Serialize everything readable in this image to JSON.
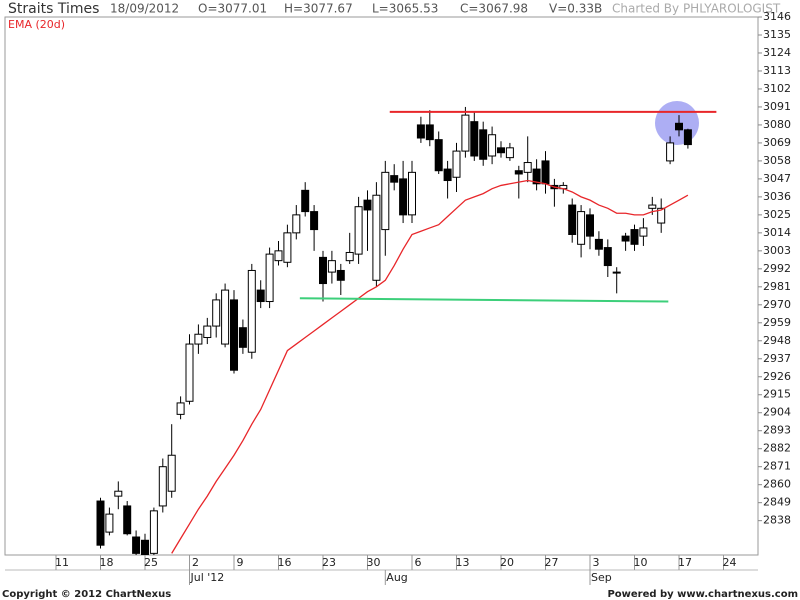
{
  "chart_data": {
    "type": "candlestick",
    "title": "Straits Times",
    "date": "18/09/2012",
    "ohlcv": [
      "O=3077.01",
      "H=3077.67",
      "L=3065.53",
      "C=3067.98",
      "V=0.33B"
    ],
    "credit": "Charted By PHLYAROLOGIST",
    "categories": [
      "11",
      null,
      null,
      null,
      null,
      "18",
      null,
      null,
      null,
      null,
      "25",
      null,
      null,
      null,
      null,
      "2",
      null,
      null,
      null,
      null,
      "9",
      null,
      null,
      null,
      null,
      "16",
      null,
      null,
      null,
      null,
      "23",
      null,
      null,
      null,
      null,
      "30",
      null,
      null,
      null,
      null,
      "6",
      null,
      null,
      null,
      null,
      "13",
      null,
      null,
      null,
      null,
      "20",
      null,
      null,
      null,
      null,
      "27",
      null,
      null,
      null,
      null,
      "3",
      null,
      null,
      null,
      null,
      "10",
      null,
      null,
      null,
      null,
      "17",
      null,
      null,
      null,
      null,
      "24",
      null,
      null
    ],
    "month_ticks": [
      {
        "value": 15,
        "label": "Jul '12"
      },
      {
        "value": 37,
        "label": "Aug"
      },
      {
        "value": 60,
        "label": "Sep"
      }
    ],
    "open": [
      null,
      null,
      null,
      null,
      null,
      2850,
      2831,
      2853,
      2847,
      2828,
      2826,
      2818,
      2847,
      2856,
      2903,
      2911,
      2946,
      2950,
      2957,
      2946,
      2973,
      2956,
      2941,
      2979,
      2972,
      2997,
      2996,
      3014,
      3040,
      3027,
      2999,
      2990,
      2991,
      2997,
      3001,
      3034,
      2985,
      3016,
      3049,
      3047,
      3025,
      3080,
      3080,
      3071,
      3053,
      3048,
      3064,
      3082,
      3077,
      3061,
      3066,
      3060,
      3052,
      3051,
      3053,
      3058,
      3043,
      3041,
      3031,
      3007,
      3025,
      3010,
      3005,
      2990,
      3012,
      3016,
      3012,
      3029,
      3020,
      3058,
      3081,
      3077.01,
      null,
      null,
      null,
      null,
      null,
      null
    ],
    "high": [
      null,
      null,
      null,
      null,
      null,
      2852,
      2846,
      2862,
      2850,
      2832,
      2830,
      2846,
      2876,
      2897,
      2914,
      2952,
      2958,
      2962,
      2977,
      2983,
      2979,
      2961,
      2995,
      2985,
      3005,
      3009,
      3019,
      3031,
      3045,
      3031,
      3003,
      3003,
      2995,
      3014,
      3036,
      3040,
      3045,
      3058,
      3056,
      3058,
      3058,
      3085,
      3089,
      3076,
      3058,
      3069,
      3091,
      3088,
      3082,
      3079,
      3070,
      3069,
      3055,
      3073,
      3059,
      3064,
      3047,
      3045,
      3035,
      3031,
      3029,
      3015,
      3010,
      2993,
      3014,
      3019,
      3023,
      3036,
      3035,
      3073,
      3086,
      3077.67,
      null,
      null,
      null,
      null,
      null,
      null
    ],
    "low": [
      null,
      null,
      null,
      null,
      null,
      2821,
      2829,
      2845,
      2829,
      2814,
      2810,
      2812,
      2843,
      2852,
      2900,
      2909,
      2940,
      2946,
      2950,
      2944,
      2928,
      2940,
      2937,
      2968,
      2968,
      2994,
      2993,
      3010,
      3024,
      3003,
      2972,
      2983,
      2976,
      2995,
      2995,
      3003,
      2981,
      3000,
      3040,
      3020,
      3020,
      3069,
      3067,
      3050,
      3035,
      3039,
      3060,
      3058,
      3055,
      3056,
      3060,
      3058,
      3035,
      3045,
      3040,
      3038,
      3030,
      3038,
      3008,
      2999,
      3004,
      3000,
      2987,
      2977,
      3003,
      3003,
      3006,
      3025,
      3014,
      3056,
      3073,
      3065.53,
      null,
      null,
      null,
      null,
      null,
      null
    ],
    "close": [
      null,
      null,
      null,
      null,
      null,
      2823,
      2842,
      2856,
      2830,
      2818,
      2815,
      2844,
      2871,
      2878,
      2910,
      2946,
      2952,
      2957,
      2973,
      2979,
      2930,
      2944,
      2991,
      2972,
      3001,
      3003,
      3014,
      3025,
      3027,
      3016,
      2983,
      2997,
      2985,
      3002,
      3030,
      3028,
      3037,
      3051,
      3045,
      3025,
      3051,
      3072,
      3071,
      3052,
      3046,
      3064,
      3086,
      3061,
      3059,
      3074,
      3063,
      3066,
      3050,
      3057,
      3044,
      3044,
      3041,
      3043,
      3013,
      3027,
      3012,
      3004,
      2994,
      2990,
      3009,
      3007,
      3017,
      3031,
      3029,
      3069,
      3077,
      3067.98,
      null,
      null,
      null,
      null,
      null,
      null
    ],
    "up_color": "#ffffff",
    "down_color": "#000000",
    "ema": {
      "name": "EMA (20d)",
      "color": "#e8262a",
      "values": [
        null,
        null,
        null,
        null,
        null,
        null,
        null,
        null,
        null,
        null,
        null,
        null,
        null,
        2818,
        2827,
        2836,
        2845,
        2853,
        2862,
        2870,
        2878,
        2887,
        2897,
        2906,
        2918,
        2930,
        2942,
        2946,
        2950,
        2954,
        2958,
        2962,
        2966,
        2970,
        2974,
        2978,
        2981,
        2985,
        2994,
        3004,
        3013,
        3015,
        3017,
        3019,
        3024,
        3029,
        3034,
        3036,
        3038,
        3041,
        3043,
        3044,
        3045,
        3046,
        3045,
        3044,
        3042,
        3041,
        3039,
        3036,
        3034,
        3031,
        3029,
        3026,
        3026,
        3025,
        3025,
        3027,
        3028,
        3031,
        3034,
        3037,
        null,
        null,
        null,
        null,
        null,
        null
      ]
    },
    "trendlines": [
      {
        "color": "#e8262a",
        "x": [
          37.5,
          74.2
        ],
        "values": [
          3088,
          3088
        ]
      },
      {
        "color": "#3ccf7a",
        "x": [
          27.4,
          68.8
        ],
        "values": [
          2974,
          2972
        ]
      }
    ],
    "ylim": [
      2817,
      3146
    ],
    "yticks": [
      2838,
      2849,
      2860,
      2871,
      2882,
      2893,
      2904,
      2915,
      2926,
      2937,
      2948,
      2959,
      2970,
      2981,
      2992,
      3003,
      3014,
      3025,
      3036,
      3047,
      3058,
      3069,
      3080,
      3091,
      3102,
      3113,
      3124,
      3135,
      3146
    ]
  },
  "footer": {
    "left": "Copyright © 2012 ChartNexus",
    "right": "Powered by www.chartnexus.com"
  }
}
